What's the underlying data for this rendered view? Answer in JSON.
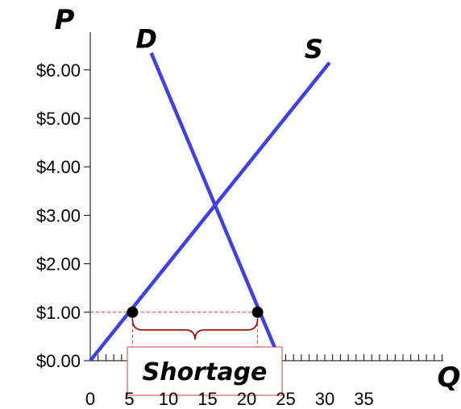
{
  "chart_data": {
    "type": "line",
    "title": "",
    "xlabel": "Q",
    "ylabel": "P",
    "xlim": [
      0,
      35
    ],
    "ylim": [
      0,
      6
    ],
    "x_ticks": [
      {
        "value": 0,
        "label": "0"
      },
      {
        "value": 5,
        "label": "5"
      },
      {
        "value": 10,
        "label": "10"
      },
      {
        "value": 15,
        "label": "15"
      },
      {
        "value": 20,
        "label": "20"
      },
      {
        "value": 25,
        "label": "25"
      },
      {
        "value": 30,
        "label": "30"
      },
      {
        "value": 35,
        "label": "35"
      }
    ],
    "y_ticks": [
      {
        "value": 0,
        "label": "$0.00"
      },
      {
        "value": 1,
        "label": "$1.00"
      },
      {
        "value": 2,
        "label": "$2.00"
      },
      {
        "value": 3,
        "label": "$3.00"
      },
      {
        "value": 4,
        "label": "$4.00"
      },
      {
        "value": 5,
        "label": "$5.00"
      },
      {
        "value": 6,
        "label": "$6.00"
      }
    ],
    "series": [
      {
        "name": "D",
        "color": "#4040e8",
        "points": [
          [
            7.8,
            6.35
          ],
          [
            24.3,
            0
          ]
        ]
      },
      {
        "name": "S",
        "color": "#4040e8",
        "points": [
          [
            0,
            0
          ],
          [
            30.6,
            6.15
          ]
        ]
      }
    ],
    "points": [
      {
        "x": 5.4,
        "y": 1
      },
      {
        "x": 21.4,
        "y": 1
      }
    ],
    "reference_lines": {
      "price": 1,
      "x_from": 0,
      "x_to": 21.4,
      "color": "#e03030"
    },
    "annotation": {
      "text": "Shortage",
      "from": 5.4,
      "to": 21.4,
      "brace_color": "#a00000"
    },
    "grid": false,
    "legend": "none"
  }
}
